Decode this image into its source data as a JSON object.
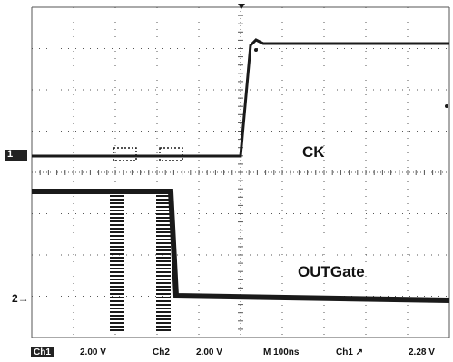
{
  "traces": {
    "ck_label": "CK",
    "outgate_label": "OUTGate",
    "ch1_marker": "1",
    "ch2_marker": "2→"
  },
  "statusbar": {
    "ch1": "Ch1",
    "ch1_scale": "2.00 V",
    "ch2": "Ch2",
    "ch2_scale": "2.00 V",
    "timebase": "M  100ns",
    "trigger": "Ch1  ↗",
    "trigger_level": "2.28 V"
  },
  "colors": {
    "trace": "#1a1a1a",
    "grid": "#555555",
    "background": "#ffffff"
  }
}
